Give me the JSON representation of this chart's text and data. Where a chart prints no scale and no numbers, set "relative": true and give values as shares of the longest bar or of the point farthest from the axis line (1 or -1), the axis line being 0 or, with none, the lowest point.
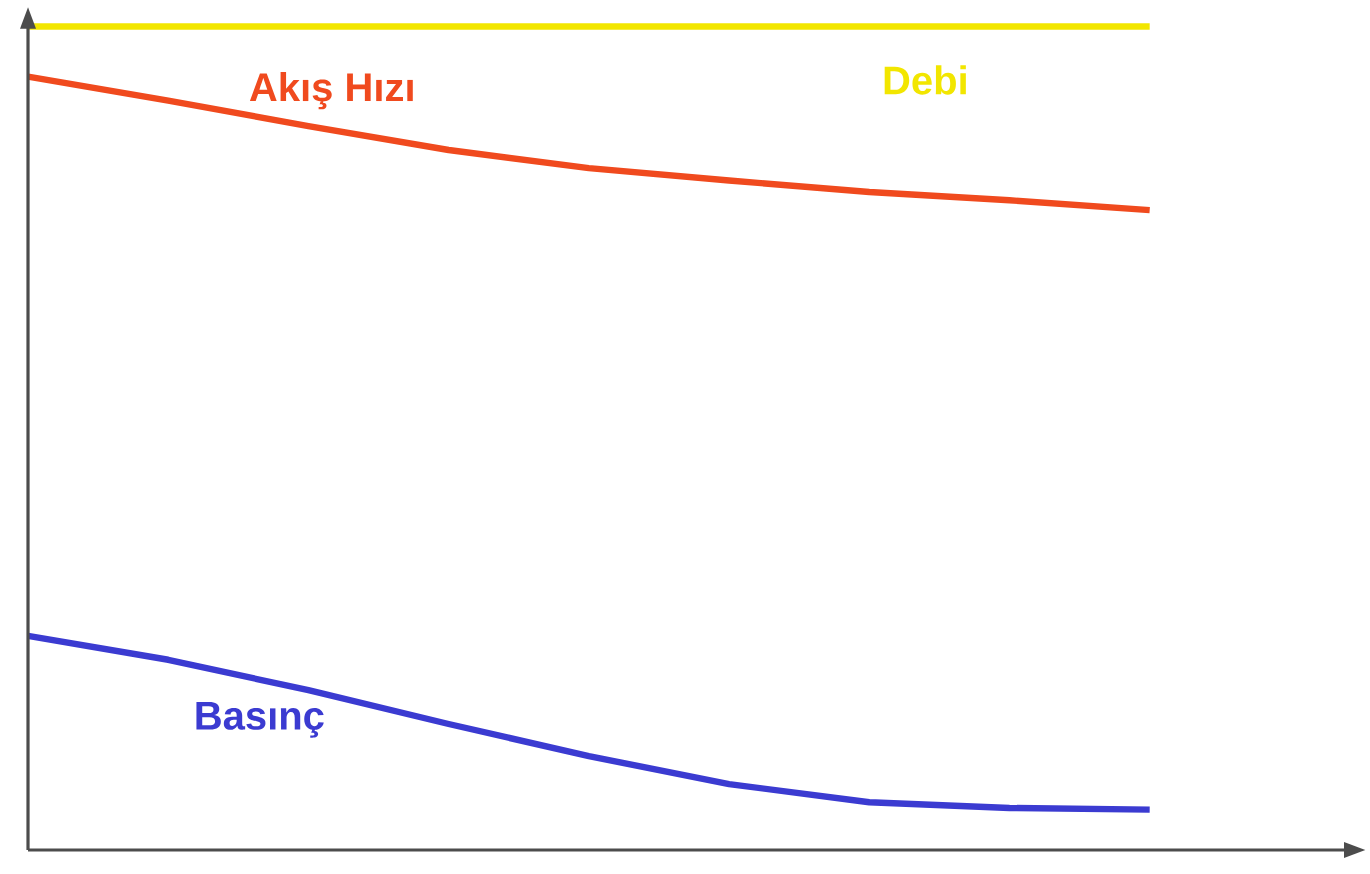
{
  "chart_data": {
    "type": "line",
    "relative": true,
    "marker": "none",
    "line_style": "solid",
    "legend": false,
    "categories": [
      null,
      null,
      null,
      null,
      null,
      null,
      null,
      null,
      null
    ],
    "series": [
      {
        "name": "Debi",
        "color": "#f2e600",
        "values": [
          1,
          1,
          1,
          1,
          1,
          1,
          1,
          1,
          1
        ]
      },
      {
        "name": "Akış Hızı",
        "color": "#f04a1e",
        "values": [
          0.939,
          0.91,
          0.879,
          0.85,
          0.828,
          0.813,
          0.799,
          0.789,
          0.777
        ]
      },
      {
        "name": "Basınç",
        "color": "#3b3bd1",
        "values": [
          0.26,
          0.231,
          0.194,
          0.153,
          0.114,
          0.08,
          0.058,
          0.051,
          0.049
        ]
      }
    ]
  }
}
